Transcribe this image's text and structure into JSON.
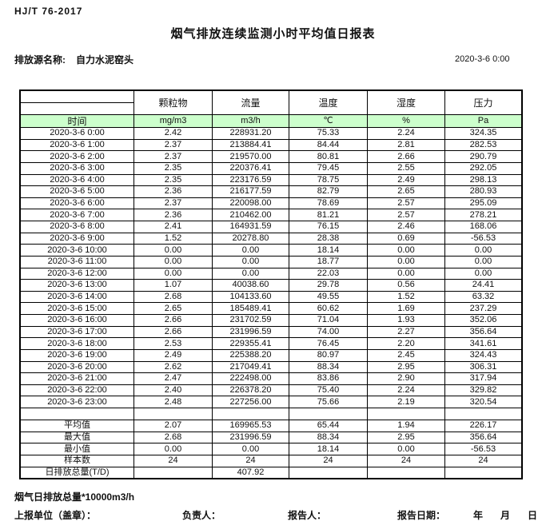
{
  "page": {
    "standard": "HJ/T 76-2017",
    "title": "烟气排放连续监测小时平均值日报表",
    "source_label": "排放源名称:",
    "source_name": "自力水泥窑头",
    "datetime": "2020-3-6 0:00"
  },
  "colors": {
    "unit_row_green": "#ccffcc",
    "border": "#000000"
  },
  "table": {
    "time_header": "时间",
    "columns": [
      {
        "name": "颗粒物",
        "unit": "mg/m3"
      },
      {
        "name": "流量",
        "unit": "m3/h"
      },
      {
        "name": "温度",
        "unit": "℃"
      },
      {
        "name": "湿度",
        "unit": "%"
      },
      {
        "name": "压力",
        "unit": "Pa"
      }
    ],
    "rows": [
      {
        "time": "2020-3-6 0:00",
        "values": [
          "2.42",
          "228931.20",
          "75.33",
          "2.24",
          "324.35"
        ]
      },
      {
        "time": "2020-3-6 1:00",
        "values": [
          "2.37",
          "213884.41",
          "84.44",
          "2.81",
          "282.53"
        ]
      },
      {
        "time": "2020-3-6 2:00",
        "values": [
          "2.37",
          "219570.00",
          "80.81",
          "2.66",
          "290.79"
        ]
      },
      {
        "time": "2020-3-6 3:00",
        "values": [
          "2.35",
          "220376.41",
          "79.45",
          "2.55",
          "292.05"
        ]
      },
      {
        "time": "2020-3-6 4:00",
        "values": [
          "2.35",
          "223176.59",
          "78.75",
          "2.49",
          "298.13"
        ]
      },
      {
        "time": "2020-3-6 5:00",
        "values": [
          "2.36",
          "216177.59",
          "82.79",
          "2.65",
          "280.93"
        ]
      },
      {
        "time": "2020-3-6 6:00",
        "values": [
          "2.37",
          "220098.00",
          "78.69",
          "2.57",
          "295.09"
        ]
      },
      {
        "time": "2020-3-6 7:00",
        "values": [
          "2.36",
          "210462.00",
          "81.21",
          "2.57",
          "278.21"
        ]
      },
      {
        "time": "2020-3-6 8:00",
        "values": [
          "2.41",
          "164931.59",
          "76.15",
          "2.46",
          "168.06"
        ]
      },
      {
        "time": "2020-3-6 9:00",
        "values": [
          "1.52",
          "20278.80",
          "28.38",
          "0.69",
          "-56.53"
        ]
      },
      {
        "time": "2020-3-6 10:00",
        "values": [
          "0.00",
          "0.00",
          "18.14",
          "0.00",
          "0.00"
        ]
      },
      {
        "time": "2020-3-6 11:00",
        "values": [
          "0.00",
          "0.00",
          "18.77",
          "0.00",
          "0.00"
        ]
      },
      {
        "time": "2020-3-6 12:00",
        "values": [
          "0.00",
          "0.00",
          "22.03",
          "0.00",
          "0.00"
        ]
      },
      {
        "time": "2020-3-6 13:00",
        "values": [
          "1.07",
          "40038.60",
          "29.78",
          "0.56",
          "24.41"
        ]
      },
      {
        "time": "2020-3-6 14:00",
        "values": [
          "2.68",
          "104133.60",
          "49.55",
          "1.52",
          "63.32"
        ]
      },
      {
        "time": "2020-3-6 15:00",
        "values": [
          "2.65",
          "185489.41",
          "60.62",
          "1.69",
          "237.29"
        ]
      },
      {
        "time": "2020-3-6 16:00",
        "values": [
          "2.66",
          "231702.59",
          "71.04",
          "1.93",
          "352.06"
        ]
      },
      {
        "time": "2020-3-6 17:00",
        "values": [
          "2.66",
          "231996.59",
          "74.00",
          "2.27",
          "356.64"
        ]
      },
      {
        "time": "2020-3-6 18:00",
        "values": [
          "2.53",
          "229355.41",
          "76.45",
          "2.20",
          "341.61"
        ]
      },
      {
        "time": "2020-3-6 19:00",
        "values": [
          "2.49",
          "225388.20",
          "80.97",
          "2.45",
          "324.43"
        ]
      },
      {
        "time": "2020-3-6 20:00",
        "values": [
          "2.62",
          "217049.41",
          "88.34",
          "2.95",
          "306.31"
        ]
      },
      {
        "time": "2020-3-6 21:00",
        "values": [
          "2.47",
          "222498.00",
          "83.86",
          "2.90",
          "317.94"
        ]
      },
      {
        "time": "2020-3-6 22:00",
        "values": [
          "2.40",
          "226378.20",
          "75.40",
          "2.24",
          "329.82"
        ]
      },
      {
        "time": "2020-3-6 23:00",
        "values": [
          "2.48",
          "227256.00",
          "75.66",
          "2.19",
          "320.54"
        ]
      }
    ],
    "summary": [
      {
        "label": "平均值",
        "values": [
          "2.07",
          "169965.53",
          "65.44",
          "1.94",
          "226.17"
        ]
      },
      {
        "label": "最大值",
        "values": [
          "2.68",
          "231996.59",
          "88.34",
          "2.95",
          "356.64"
        ]
      },
      {
        "label": "最小值",
        "values": [
          "0.00",
          "0.00",
          "18.14",
          "0.00",
          "-56.53"
        ]
      },
      {
        "label": "样本数",
        "values": [
          "24",
          "24",
          "24",
          "24",
          "24"
        ]
      },
      {
        "label": "日排放总量(T/D)",
        "values": [
          "",
          "407.92",
          "",
          "",
          ""
        ]
      }
    ]
  },
  "footer": {
    "note": "烟气日排放总量*10000m3/h",
    "report_unit_label": "上报单位（盖章）：",
    "responsible_label": "负责人：",
    "reporter_label": "报告人：",
    "report_date_label": "报告日期：",
    "year": "年",
    "month": "月",
    "day": "日"
  }
}
